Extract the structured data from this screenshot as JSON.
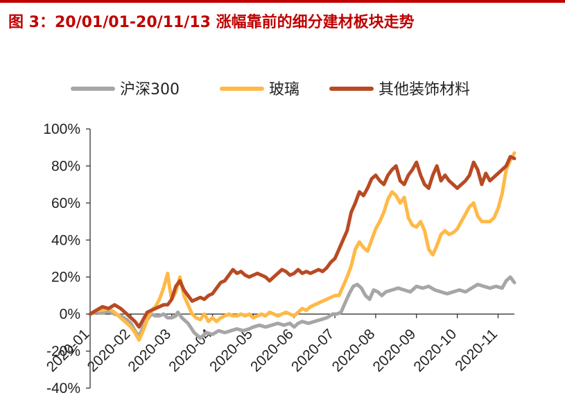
{
  "figure": {
    "title": "图 3：20/01/01-20/11/13 涨幅靠前的细分建材板块走势"
  },
  "chart_data": {
    "type": "line",
    "ylim": [
      -0.4,
      1.0
    ],
    "yticks": [
      -0.4,
      -0.2,
      0.0,
      0.2,
      0.4,
      0.6,
      0.8,
      1.0
    ],
    "ytick_labels": [
      "-40%",
      "-20%",
      "0%",
      "20%",
      "40%",
      "60%",
      "80%",
      "100%"
    ],
    "x_categories": [
      "2020-01",
      "2020-02",
      "2020-03",
      "2020-04",
      "2020-05",
      "2020-06",
      "2020-07",
      "2020-08",
      "2020-09",
      "2020-10",
      "2020-11"
    ],
    "x_range": [
      0,
      10.4
    ],
    "grid": false,
    "legend_position": "top",
    "series": [
      {
        "name": "沪深300",
        "color": "#a6a6a6",
        "points": [
          [
            0.0,
            0.0
          ],
          [
            0.15,
            0.01
          ],
          [
            0.3,
            0.005
          ],
          [
            0.45,
            0.015
          ],
          [
            0.6,
            0.0
          ],
          [
            0.75,
            -0.01
          ],
          [
            0.9,
            -0.03
          ],
          [
            1.0,
            -0.05
          ],
          [
            1.1,
            -0.09
          ],
          [
            1.2,
            -0.12
          ],
          [
            1.3,
            -0.07
          ],
          [
            1.4,
            -0.03
          ],
          [
            1.5,
            0.0
          ],
          [
            1.6,
            -0.01
          ],
          [
            1.7,
            -0.01
          ],
          [
            1.8,
            0.0
          ],
          [
            1.9,
            -0.02
          ],
          [
            2.0,
            -0.02
          ],
          [
            2.1,
            -0.01
          ],
          [
            2.15,
            0.01
          ],
          [
            2.25,
            -0.02
          ],
          [
            2.4,
            -0.05
          ],
          [
            2.55,
            -0.1
          ],
          [
            2.7,
            -0.13
          ],
          [
            2.85,
            -0.1
          ],
          [
            3.0,
            -0.11
          ],
          [
            3.15,
            -0.09
          ],
          [
            3.3,
            -0.1
          ],
          [
            3.45,
            -0.09
          ],
          [
            3.6,
            -0.08
          ],
          [
            3.75,
            -0.09
          ],
          [
            3.9,
            -0.08
          ],
          [
            4.0,
            -0.07
          ],
          [
            4.15,
            -0.06
          ],
          [
            4.3,
            -0.07
          ],
          [
            4.45,
            -0.06
          ],
          [
            4.6,
            -0.05
          ],
          [
            4.75,
            -0.06
          ],
          [
            4.9,
            -0.05
          ],
          [
            5.0,
            -0.07
          ],
          [
            5.1,
            -0.05
          ],
          [
            5.2,
            -0.04
          ],
          [
            5.35,
            -0.05
          ],
          [
            5.5,
            -0.04
          ],
          [
            5.65,
            -0.03
          ],
          [
            5.8,
            -0.02
          ],
          [
            5.95,
            0.0
          ],
          [
            6.05,
            0.0
          ],
          [
            6.15,
            0.01
          ],
          [
            6.25,
            0.06
          ],
          [
            6.35,
            0.11
          ],
          [
            6.45,
            0.15
          ],
          [
            6.55,
            0.16
          ],
          [
            6.65,
            0.14
          ],
          [
            6.75,
            0.1
          ],
          [
            6.85,
            0.08
          ],
          [
            6.95,
            0.13
          ],
          [
            7.05,
            0.12
          ],
          [
            7.15,
            0.1
          ],
          [
            7.25,
            0.12
          ],
          [
            7.4,
            0.13
          ],
          [
            7.55,
            0.14
          ],
          [
            7.7,
            0.13
          ],
          [
            7.85,
            0.12
          ],
          [
            8.0,
            0.15
          ],
          [
            8.15,
            0.14
          ],
          [
            8.3,
            0.15
          ],
          [
            8.45,
            0.13
          ],
          [
            8.6,
            0.12
          ],
          [
            8.75,
            0.11
          ],
          [
            8.9,
            0.12
          ],
          [
            9.05,
            0.13
          ],
          [
            9.2,
            0.12
          ],
          [
            9.35,
            0.14
          ],
          [
            9.5,
            0.16
          ],
          [
            9.65,
            0.15
          ],
          [
            9.8,
            0.14
          ],
          [
            9.95,
            0.15
          ],
          [
            10.1,
            0.14
          ],
          [
            10.2,
            0.18
          ],
          [
            10.3,
            0.2
          ],
          [
            10.4,
            0.17
          ]
        ]
      },
      {
        "name": "玻璃",
        "color": "#ffb946",
        "points": [
          [
            0.0,
            0.0
          ],
          [
            0.15,
            0.02
          ],
          [
            0.3,
            0.02
          ],
          [
            0.45,
            0.03
          ],
          [
            0.6,
            0.01
          ],
          [
            0.75,
            -0.02
          ],
          [
            0.9,
            -0.05
          ],
          [
            1.0,
            -0.07
          ],
          [
            1.1,
            -0.1
          ],
          [
            1.2,
            -0.14
          ],
          [
            1.3,
            -0.09
          ],
          [
            1.4,
            -0.03
          ],
          [
            1.5,
            0.02
          ],
          [
            1.6,
            0.04
          ],
          [
            1.7,
            0.08
          ],
          [
            1.8,
            0.14
          ],
          [
            1.9,
            0.22
          ],
          [
            1.95,
            0.14
          ],
          [
            2.0,
            0.08
          ],
          [
            2.1,
            0.12
          ],
          [
            2.2,
            0.2
          ],
          [
            2.3,
            0.1
          ],
          [
            2.4,
            0.05
          ],
          [
            2.5,
            0.0
          ],
          [
            2.6,
            -0.02
          ],
          [
            2.7,
            -0.03
          ],
          [
            2.8,
            0.0
          ],
          [
            2.9,
            -0.04
          ],
          [
            3.0,
            -0.02
          ],
          [
            3.1,
            -0.04
          ],
          [
            3.2,
            -0.02
          ],
          [
            3.3,
            -0.01
          ],
          [
            3.4,
            0.0
          ],
          [
            3.5,
            -0.01
          ],
          [
            3.6,
            -0.01
          ],
          [
            3.7,
            0.0
          ],
          [
            3.8,
            -0.01
          ],
          [
            3.9,
            0.0
          ],
          [
            4.0,
            -0.02
          ],
          [
            4.1,
            -0.01
          ],
          [
            4.2,
            0.0
          ],
          [
            4.3,
            -0.01
          ],
          [
            4.4,
            0.01
          ],
          [
            4.5,
            0.0
          ],
          [
            4.6,
            -0.01
          ],
          [
            4.7,
            0.0
          ],
          [
            4.8,
            0.01
          ],
          [
            4.9,
            0.0
          ],
          [
            5.0,
            -0.01
          ],
          [
            5.1,
            0.01
          ],
          [
            5.2,
            0.03
          ],
          [
            5.3,
            0.02
          ],
          [
            5.4,
            0.04
          ],
          [
            5.5,
            0.05
          ],
          [
            5.6,
            0.06
          ],
          [
            5.7,
            0.07
          ],
          [
            5.8,
            0.08
          ],
          [
            5.9,
            0.09
          ],
          [
            6.0,
            0.1
          ],
          [
            6.1,
            0.1
          ],
          [
            6.2,
            0.15
          ],
          [
            6.3,
            0.2
          ],
          [
            6.4,
            0.26
          ],
          [
            6.5,
            0.35
          ],
          [
            6.6,
            0.39
          ],
          [
            6.7,
            0.36
          ],
          [
            6.8,
            0.34
          ],
          [
            6.9,
            0.4
          ],
          [
            7.0,
            0.46
          ],
          [
            7.1,
            0.5
          ],
          [
            7.2,
            0.55
          ],
          [
            7.3,
            0.62
          ],
          [
            7.4,
            0.66
          ],
          [
            7.5,
            0.64
          ],
          [
            7.6,
            0.6
          ],
          [
            7.7,
            0.63
          ],
          [
            7.8,
            0.52
          ],
          [
            7.9,
            0.48
          ],
          [
            8.0,
            0.47
          ],
          [
            8.1,
            0.5
          ],
          [
            8.2,
            0.45
          ],
          [
            8.3,
            0.35
          ],
          [
            8.4,
            0.32
          ],
          [
            8.5,
            0.37
          ],
          [
            8.6,
            0.43
          ],
          [
            8.7,
            0.45
          ],
          [
            8.8,
            0.43
          ],
          [
            8.9,
            0.44
          ],
          [
            9.0,
            0.46
          ],
          [
            9.1,
            0.5
          ],
          [
            9.2,
            0.54
          ],
          [
            9.3,
            0.58
          ],
          [
            9.4,
            0.6
          ],
          [
            9.5,
            0.53
          ],
          [
            9.6,
            0.5
          ],
          [
            9.7,
            0.5
          ],
          [
            9.8,
            0.5
          ],
          [
            9.9,
            0.52
          ],
          [
            10.0,
            0.57
          ],
          [
            10.1,
            0.65
          ],
          [
            10.2,
            0.78
          ],
          [
            10.3,
            0.83
          ],
          [
            10.4,
            0.87
          ]
        ]
      },
      {
        "name": "其他装饰材料",
        "color": "#b84a23",
        "points": [
          [
            0.0,
            0.0
          ],
          [
            0.15,
            0.02
          ],
          [
            0.3,
            0.04
          ],
          [
            0.45,
            0.03
          ],
          [
            0.6,
            0.05
          ],
          [
            0.75,
            0.03
          ],
          [
            0.9,
            0.0
          ],
          [
            1.0,
            -0.02
          ],
          [
            1.1,
            -0.04
          ],
          [
            1.2,
            -0.07
          ],
          [
            1.3,
            -0.03
          ],
          [
            1.4,
            0.01
          ],
          [
            1.5,
            0.02
          ],
          [
            1.6,
            0.03
          ],
          [
            1.7,
            0.04
          ],
          [
            1.8,
            0.05
          ],
          [
            1.9,
            0.05
          ],
          [
            2.0,
            0.08
          ],
          [
            2.1,
            0.15
          ],
          [
            2.2,
            0.18
          ],
          [
            2.3,
            0.13
          ],
          [
            2.4,
            0.1
          ],
          [
            2.5,
            0.07
          ],
          [
            2.6,
            0.08
          ],
          [
            2.7,
            0.09
          ],
          [
            2.8,
            0.08
          ],
          [
            2.9,
            0.1
          ],
          [
            3.0,
            0.11
          ],
          [
            3.1,
            0.14
          ],
          [
            3.2,
            0.17
          ],
          [
            3.3,
            0.18
          ],
          [
            3.4,
            0.21
          ],
          [
            3.5,
            0.24
          ],
          [
            3.6,
            0.22
          ],
          [
            3.7,
            0.23
          ],
          [
            3.8,
            0.21
          ],
          [
            3.9,
            0.2
          ],
          [
            4.0,
            0.21
          ],
          [
            4.1,
            0.22
          ],
          [
            4.2,
            0.21
          ],
          [
            4.3,
            0.2
          ],
          [
            4.4,
            0.18
          ],
          [
            4.5,
            0.2
          ],
          [
            4.6,
            0.22
          ],
          [
            4.7,
            0.24
          ],
          [
            4.8,
            0.23
          ],
          [
            4.9,
            0.21
          ],
          [
            5.0,
            0.22
          ],
          [
            5.1,
            0.24
          ],
          [
            5.2,
            0.22
          ],
          [
            5.3,
            0.23
          ],
          [
            5.4,
            0.22
          ],
          [
            5.5,
            0.23
          ],
          [
            5.6,
            0.24
          ],
          [
            5.7,
            0.23
          ],
          [
            5.8,
            0.25
          ],
          [
            5.9,
            0.28
          ],
          [
            6.0,
            0.3
          ],
          [
            6.1,
            0.35
          ],
          [
            6.2,
            0.4
          ],
          [
            6.3,
            0.45
          ],
          [
            6.4,
            0.55
          ],
          [
            6.5,
            0.6
          ],
          [
            6.6,
            0.66
          ],
          [
            6.7,
            0.64
          ],
          [
            6.8,
            0.68
          ],
          [
            6.9,
            0.73
          ],
          [
            7.0,
            0.75
          ],
          [
            7.1,
            0.72
          ],
          [
            7.2,
            0.7
          ],
          [
            7.3,
            0.75
          ],
          [
            7.4,
            0.78
          ],
          [
            7.5,
            0.8
          ],
          [
            7.6,
            0.72
          ],
          [
            7.7,
            0.7
          ],
          [
            7.8,
            0.75
          ],
          [
            7.9,
            0.78
          ],
          [
            8.0,
            0.82
          ],
          [
            8.1,
            0.75
          ],
          [
            8.2,
            0.7
          ],
          [
            8.3,
            0.68
          ],
          [
            8.4,
            0.75
          ],
          [
            8.5,
            0.8
          ],
          [
            8.6,
            0.72
          ],
          [
            8.7,
            0.75
          ],
          [
            8.8,
            0.72
          ],
          [
            8.9,
            0.7
          ],
          [
            9.0,
            0.68
          ],
          [
            9.1,
            0.7
          ],
          [
            9.2,
            0.72
          ],
          [
            9.3,
            0.75
          ],
          [
            9.4,
            0.82
          ],
          [
            9.5,
            0.78
          ],
          [
            9.6,
            0.7
          ],
          [
            9.7,
            0.76
          ],
          [
            9.8,
            0.72
          ],
          [
            9.9,
            0.74
          ],
          [
            10.0,
            0.76
          ],
          [
            10.1,
            0.78
          ],
          [
            10.2,
            0.8
          ],
          [
            10.3,
            0.85
          ],
          [
            10.4,
            0.84
          ]
        ]
      }
    ]
  }
}
